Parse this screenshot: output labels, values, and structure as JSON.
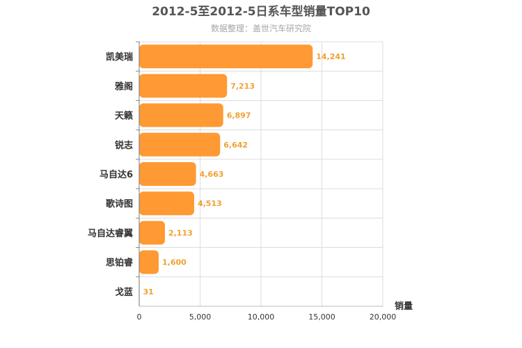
{
  "chart_data": {
    "type": "bar",
    "orientation": "horizontal",
    "title": "2012-5至2012-5日系车型销量TOP10",
    "subtitle": "数据整理：盖世汽车研究院",
    "categories": [
      "凯美瑞",
      "雅阁",
      "天籁",
      "锐志",
      "马自达6",
      "歌诗图",
      "马自达睿翼",
      "思铂睿",
      "戈蓝"
    ],
    "values": [
      14241,
      7213,
      6897,
      6642,
      4663,
      4513,
      2113,
      1600,
      31
    ],
    "value_labels": [
      "14,241",
      "7,213",
      "6,897",
      "6,642",
      "4,663",
      "4,513",
      "2,113",
      "1,600",
      "31"
    ],
    "xlabel": "销量",
    "ylabel": "",
    "xlim": [
      0,
      20000
    ],
    "x_ticks": [
      0,
      5000,
      10000,
      15000,
      20000
    ],
    "x_tick_labels": [
      "0",
      "5,000",
      "10,000",
      "15,000",
      "20,000"
    ],
    "grid": true,
    "bar_color": "#ff9933",
    "label_color": "#f0a030"
  }
}
